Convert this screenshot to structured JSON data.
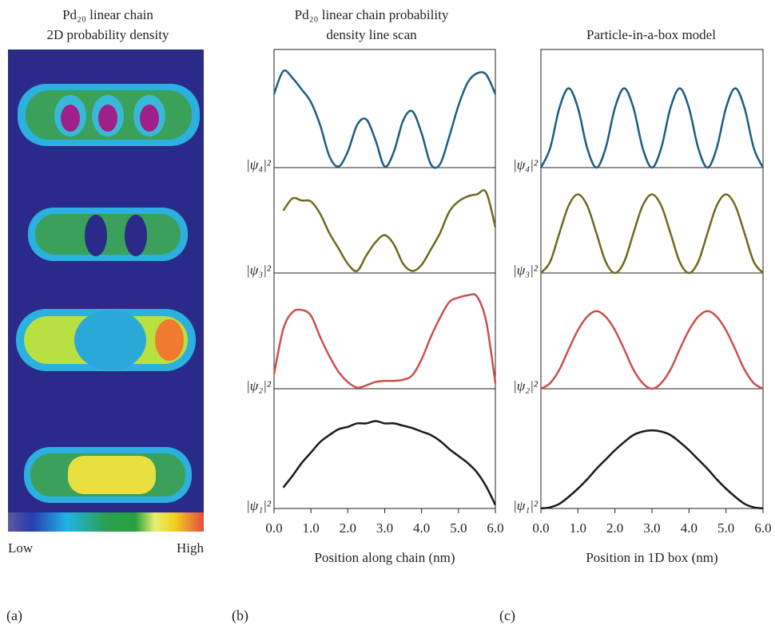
{
  "panel_a": {
    "title": [
      "Pd₂₀ linear chain",
      "2D probability density"
    ],
    "colorbar_low": "Low",
    "colorbar_high": "High",
    "label": "(a)"
  },
  "chart_data": [
    {
      "type": "line",
      "title": [
        "Pd₂₀ linear chain probability",
        "density line scan"
      ],
      "xlabel": "Position along chain (nm)",
      "label": "(b)",
      "xlim": [
        0,
        6
      ],
      "ylim": [
        0,
        1
      ],
      "xticks": [
        {
          "value": 0,
          "label": "0.0"
        },
        {
          "value": 1,
          "label": "1.0"
        },
        {
          "value": 2,
          "label": "2.0"
        },
        {
          "value": 3,
          "label": "3.0"
        },
        {
          "value": 4,
          "label": "4.0"
        },
        {
          "value": 5,
          "label": "5.0"
        },
        {
          "value": 6,
          "label": "6.0"
        }
      ],
      "x": [
        0,
        0.25,
        0.5,
        0.75,
        1,
        1.25,
        1.5,
        1.75,
        2,
        2.25,
        2.5,
        2.75,
        3,
        3.25,
        3.5,
        3.75,
        4,
        4.25,
        4.5,
        4.75,
        5,
        5.25,
        5.5,
        5.75,
        6
      ],
      "series": [
        {
          "name": "|ψ₄|²",
          "color": "#1b5f7f",
          "values": [
            0.64,
            0.84,
            0.78,
            0.68,
            0.57,
            0.37,
            0.1,
            0.01,
            0.14,
            0.37,
            0.42,
            0.24,
            0.01,
            0.14,
            0.41,
            0.49,
            0.3,
            0.03,
            0.03,
            0.27,
            0.54,
            0.74,
            0.82,
            0.81,
            0.64
          ]
        },
        {
          "name": "|ψ₃|²",
          "color": "#6f6a1c",
          "values": [
            null,
            0.61,
            0.73,
            0.71,
            0.7,
            0.58,
            0.39,
            0.24,
            0.09,
            0.02,
            0.17,
            0.3,
            0.37,
            0.28,
            0.09,
            0.02,
            0.08,
            0.23,
            0.39,
            0.6,
            0.7,
            0.75,
            0.77,
            0.79,
            0.45
          ]
        },
        {
          "name": "|ψ₂|²",
          "color": "#c9504f",
          "values": [
            0.13,
            0.53,
            0.68,
            0.7,
            0.65,
            0.46,
            0.29,
            0.15,
            0.06,
            0.01,
            0.03,
            0.06,
            0.07,
            0.07,
            0.08,
            0.12,
            0.26,
            0.46,
            0.63,
            0.77,
            0.81,
            0.83,
            0.82,
            0.6,
            0.05
          ]
        },
        {
          "name": "|ψ₁|²",
          "color": "#1a1a1a",
          "values": [
            null,
            0.18,
            0.28,
            0.39,
            0.48,
            0.57,
            0.63,
            0.68,
            0.7,
            0.73,
            0.73,
            0.75,
            0.73,
            0.73,
            0.71,
            0.69,
            0.66,
            0.63,
            0.58,
            0.51,
            0.45,
            0.39,
            0.31,
            0.19,
            0.03
          ]
        }
      ]
    },
    {
      "type": "line",
      "title": [
        "Particle-in-a-box model"
      ],
      "xlabel": "Position in 1D box (nm)",
      "label": "(c)",
      "xlim": [
        0,
        6
      ],
      "ylim": [
        0,
        1
      ],
      "xticks": [
        {
          "value": 0,
          "label": "0.0"
        },
        {
          "value": 1,
          "label": "1.0"
        },
        {
          "value": 2,
          "label": "2.0"
        },
        {
          "value": 3,
          "label": "3.0"
        },
        {
          "value": 4,
          "label": "4.0"
        },
        {
          "value": 5,
          "label": "5.0"
        },
        {
          "value": 6,
          "label": "6.0"
        }
      ],
      "x": [
        0,
        0.25,
        0.5,
        0.75,
        1,
        1.25,
        1.5,
        1.75,
        2,
        2.25,
        2.5,
        2.75,
        3,
        3.25,
        3.5,
        3.75,
        4,
        4.25,
        4.5,
        4.75,
        5,
        5.25,
        5.5,
        5.75,
        6
      ],
      "series": [
        {
          "name": "|ψ₄|²",
          "color": "#1b5f7f",
          "values": [
            0,
            0.17,
            0.52,
            0.69,
            0.52,
            0.17,
            0,
            0.17,
            0.52,
            0.69,
            0.52,
            0.17,
            0,
            0.17,
            0.52,
            0.69,
            0.52,
            0.17,
            0,
            0.17,
            0.52,
            0.69,
            0.52,
            0.17,
            0
          ]
        },
        {
          "name": "|ψ₃|²",
          "color": "#6f6a1c",
          "values": [
            0,
            0.11,
            0.39,
            0.66,
            0.77,
            0.66,
            0.39,
            0.11,
            0,
            0.11,
            0.39,
            0.66,
            0.77,
            0.66,
            0.39,
            0.11,
            0,
            0.11,
            0.39,
            0.66,
            0.77,
            0.66,
            0.39,
            0.11,
            0
          ]
        },
        {
          "name": "|ψ₂|²",
          "color": "#c9504f",
          "values": [
            0,
            0.05,
            0.17,
            0.35,
            0.52,
            0.64,
            0.69,
            0.64,
            0.52,
            0.35,
            0.17,
            0.05,
            0,
            0.05,
            0.17,
            0.35,
            0.52,
            0.64,
            0.69,
            0.64,
            0.52,
            0.35,
            0.17,
            0.05,
            0
          ]
        },
        {
          "name": "|ψ₁|²",
          "color": "#1a1a1a",
          "values": [
            0,
            0.01,
            0.04,
            0.1,
            0.17,
            0.25,
            0.34,
            0.42,
            0.5,
            0.57,
            0.63,
            0.66,
            0.67,
            0.66,
            0.63,
            0.57,
            0.5,
            0.42,
            0.34,
            0.25,
            0.17,
            0.1,
            0.04,
            0.01,
            0
          ]
        }
      ]
    }
  ]
}
